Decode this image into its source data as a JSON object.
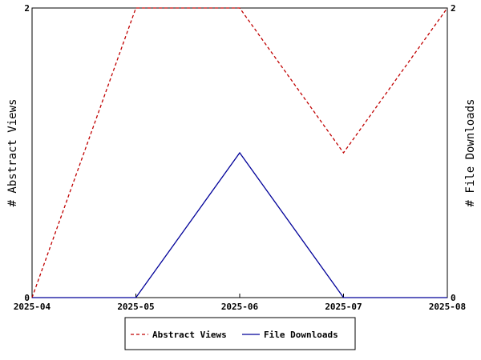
{
  "chart_data": {
    "type": "line",
    "categories": [
      "2025-04",
      "2025-05",
      "2025-06",
      "2025-07",
      "2025-08"
    ],
    "series": [
      {
        "name": "Abstract Views",
        "axis": "left",
        "color": "#c00000",
        "dash": "dashed",
        "values": [
          0,
          2,
          2,
          1,
          2
        ]
      },
      {
        "name": "File Downloads",
        "axis": "right",
        "color": "#000099",
        "dash": "solid",
        "values": [
          0,
          0,
          1,
          0,
          0
        ]
      }
    ],
    "ylabel": "# Abstract Views",
    "y2label": "# File Downloads",
    "ylim": [
      0,
      2
    ],
    "y2lim": [
      0,
      2
    ],
    "yticks": [
      "0",
      "2"
    ],
    "y2ticks": [
      "0",
      "2"
    ],
    "grid": false,
    "legend_position": "bottom-center"
  }
}
